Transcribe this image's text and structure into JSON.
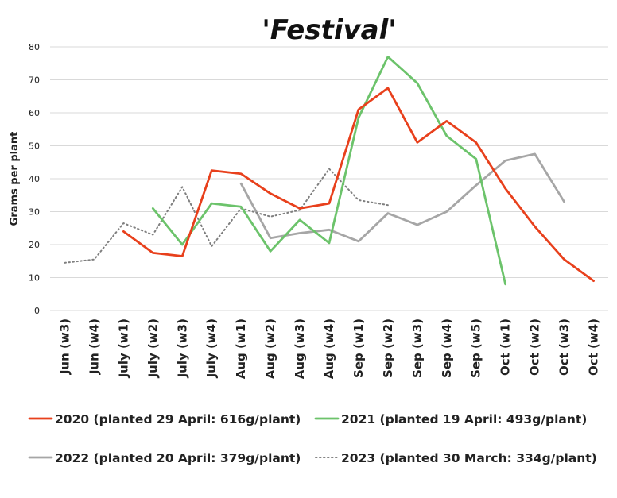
{
  "chart_data": {
    "type": "line",
    "title": "'Festival'",
    "xlabel": "",
    "ylabel": "Grams per plant",
    "ylim": [
      0,
      80
    ],
    "yticks": [
      "0",
      "10",
      "20",
      "30",
      "40",
      "50",
      "60",
      "70",
      "80"
    ],
    "grid": true,
    "legend_position": "bottom",
    "categories": [
      "Jun (w3)",
      "Jun (w4)",
      "July (w1)",
      "July (w2)",
      "July (w3)",
      "July (w4)",
      "Aug (w1)",
      "Aug (w2)",
      "Aug (w3)",
      "Aug (w4)",
      "Sep (w1)",
      "Sep (w2)",
      "Sep (w3)",
      "Sep (w4)",
      "Sep (w5)",
      "Oct (w1)",
      "Oct (w2)",
      "Oct (w3)",
      "Oct (w4)"
    ],
    "series": [
      {
        "name": "2020 (planted 29 April: 616g/plant)",
        "color": "#e8401c",
        "dash": "solid",
        "values": [
          null,
          null,
          24,
          17.5,
          16.5,
          42.5,
          41.5,
          35.5,
          31,
          32.5,
          61,
          67.5,
          51,
          57.5,
          51,
          37,
          25.5,
          15.5,
          9
        ]
      },
      {
        "name": "2021 (planted 19 April: 493g/plant)",
        "color": "#6cc36b",
        "dash": "solid",
        "values": [
          null,
          null,
          null,
          31,
          20,
          32.5,
          31.5,
          18,
          27.5,
          20.5,
          58.5,
          77,
          69,
          53,
          46,
          8,
          null,
          null,
          null
        ]
      },
      {
        "name": "2022 (planted 20 April: 379g/plant)",
        "color": "#a6a6a6",
        "dash": "solid",
        "values": [
          null,
          null,
          null,
          null,
          null,
          null,
          38.5,
          22,
          23.5,
          24.5,
          21,
          29.5,
          26,
          30,
          38,
          45.5,
          47.5,
          33,
          null
        ]
      },
      {
        "name": "2023 (planted 30 March: 334g/plant)",
        "color": "#7f7f7f",
        "dash": "dotted",
        "values": [
          14.5,
          15.5,
          26.5,
          23,
          37.5,
          19.5,
          31,
          28.5,
          30.5,
          43,
          33.5,
          32,
          null,
          null,
          null,
          null,
          null,
          null,
          null
        ]
      }
    ]
  }
}
